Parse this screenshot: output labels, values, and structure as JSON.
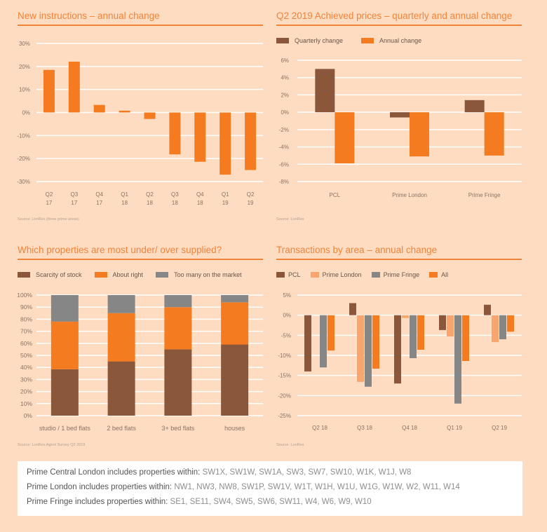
{
  "colors": {
    "background": "#fddcc1",
    "accent": "#f0843a",
    "orange": "#f47b20",
    "brown": "#8a573a",
    "grey": "#868686",
    "light_orange": "#f8a66e",
    "grid": "#ffffff",
    "axis_text": "#8b7363"
  },
  "chart_data": [
    {
      "id": "new-instructions",
      "type": "bar",
      "title": "New instructions – annual change",
      "categories": [
        "Q2\n17",
        "Q3\n17",
        "Q4\n17",
        "Q1\n18",
        "Q2\n18",
        "Q3\n18",
        "Q4\n18",
        "Q1\n19",
        "Q2\n19"
      ],
      "series": [
        {
          "name": "Annual change",
          "color": "#f47b20",
          "values": [
            18.5,
            22.1,
            3.3,
            0.8,
            -2.8,
            -18.2,
            -21.4,
            -27.0,
            -25.0
          ]
        }
      ],
      "yticks": [
        30,
        20,
        10,
        0,
        -10,
        -20,
        -30
      ],
      "ytick_labels": [
        "30%",
        "20%",
        "10%",
        "0%",
        "-10%",
        "-20%",
        "-30%"
      ],
      "ylim": [
        -30,
        30
      ],
      "grid": true,
      "legend": "none",
      "source": "Source: LonRes (three prime areas)"
    },
    {
      "id": "achieved-prices",
      "type": "bar",
      "title": "Q2 2019 Achieved prices – quarterly and annual change",
      "categories": [
        "PCL",
        "Prime London",
        "Prime Fringe"
      ],
      "series": [
        {
          "name": "Quarterly change",
          "color": "#8a573a",
          "values": [
            5.0,
            -0.6,
            1.4
          ]
        },
        {
          "name": "Annual change",
          "color": "#f47b20",
          "values": [
            -5.9,
            -5.1,
            -5.0
          ]
        }
      ],
      "yticks": [
        6,
        4,
        2,
        0,
        -2,
        -4,
        -6,
        -8
      ],
      "ytick_labels": [
        "6%",
        "4%",
        "2%",
        "0%",
        "-2%",
        "-4%",
        "-6%",
        "-8%"
      ],
      "ylim": [
        -8,
        6
      ],
      "grid": true,
      "legend": "top-left",
      "source": "Source: LonRes"
    },
    {
      "id": "supply",
      "type": "bar",
      "stacked": true,
      "title": "Which properties are most under/ over supplied?",
      "categories": [
        "studio / 1 bed flats",
        "2 bed flats",
        "3+ bed flats",
        "houses"
      ],
      "series": [
        {
          "name": "Scarcity of stock",
          "color": "#8a573a",
          "values": [
            38.5,
            45,
            55,
            59
          ]
        },
        {
          "name": "About right",
          "color": "#f47b20",
          "values": [
            39.5,
            40,
            35,
            35
          ]
        },
        {
          "name": "Too many on the market",
          "color": "#868686",
          "values": [
            22,
            15,
            10,
            6
          ]
        }
      ],
      "yticks": [
        100,
        90,
        80,
        70,
        60,
        50,
        40,
        30,
        20,
        10,
        0
      ],
      "ytick_labels": [
        "100%",
        "90%",
        "80%",
        "70%",
        "60%",
        "50%",
        "40%",
        "30%",
        "20%",
        "10%",
        "0%"
      ],
      "ylim": [
        0,
        100
      ],
      "grid": true,
      "legend": "top-left",
      "source": "Source: LonRes Agent Survey Q2 2019"
    },
    {
      "id": "transactions",
      "type": "bar",
      "title": "Transactions by area – annual change",
      "categories": [
        "Q2 18",
        "Q3 18",
        "Q4 18",
        "Q1 19",
        "Q2 19"
      ],
      "series": [
        {
          "name": "PCL",
          "color": "#8a573a",
          "values": [
            -14.0,
            3.0,
            -17.0,
            -3.7,
            2.6
          ]
        },
        {
          "name": "Prime London",
          "color": "#f8a66e",
          "values": [
            0,
            -16.6,
            -0.7,
            -5.3,
            -6.7
          ]
        },
        {
          "name": "Prime Fringe",
          "color": "#868686",
          "values": [
            -13.0,
            -17.8,
            -10.7,
            -22.0,
            -6.0
          ]
        },
        {
          "name": "All",
          "color": "#f47b20",
          "values": [
            -8.8,
            -13.3,
            -8.6,
            -11.4,
            -4.1
          ]
        }
      ],
      "yticks": [
        5,
        0,
        -5,
        -10,
        -15,
        -20,
        -25
      ],
      "ytick_labels": [
        "5%",
        "0%",
        "-5%",
        "-10%",
        "-15%",
        "-20%",
        "-25%"
      ],
      "ylim": [
        -25,
        5
      ],
      "grid": true,
      "legend": "top-left",
      "source": "Source: LonRes"
    }
  ],
  "footnote": {
    "lines": [
      {
        "label": "Prime Central London includes properties within: ",
        "codes": "SW1X, SW1W, SW1A, SW3, SW7, SW10, W1K, W1J, W8"
      },
      {
        "label": "Prime London includes properties within: ",
        "codes": "NW1, NW3, NW8, SW1P, SW1V, W1T, W1H, W1U, W1G, W1W, W2, W11, W14"
      },
      {
        "label": "Prime Fringe includes properties within: ",
        "codes": "SE1, SE11, SW4, SW5, SW6, SW11, W4, W6, W9, W10"
      }
    ]
  }
}
